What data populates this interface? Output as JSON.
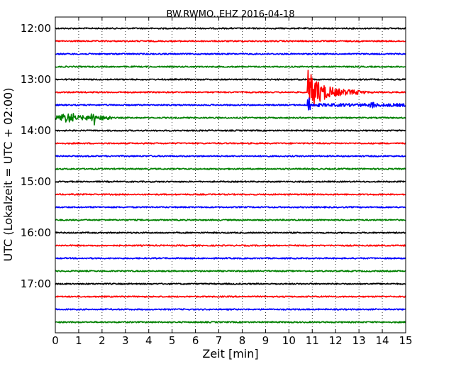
{
  "chart_data": {
    "type": "line",
    "title": "BW.RWMO..EHZ 2016-04-18",
    "xlabel": "Zeit  [min]",
    "ylabel": "UTC (Lokalzeit = UTC + 02:00)",
    "xlim": [
      0,
      15
    ],
    "x_ticks": [
      "0",
      "1",
      "2",
      "3",
      "4",
      "5",
      "6",
      "7",
      "8",
      "9",
      "10",
      "11",
      "12",
      "13",
      "14",
      "15"
    ],
    "y_ticks": [
      "12:00",
      "13:00",
      "14:00",
      "15:00",
      "16:00",
      "17:00"
    ],
    "grid": "vertical dotted at each minute",
    "colors": [
      "#000000",
      "#ff0000",
      "#0000ff",
      "#008000"
    ],
    "trace_interval_min": 15,
    "traces_start": "12:00",
    "trace_count": 24,
    "events": [
      {
        "trace_start": "13:15",
        "onset_min": 10.8,
        "peak_amplitude": "large",
        "coda_end_min": 13.3
      },
      {
        "trace_start": "13:30",
        "onset_min": 10.8,
        "peak_amplitude": "medium",
        "extra_burst_min": 13.6
      },
      {
        "trace_start": "13:45",
        "onset_min": 0.0,
        "peak_amplitude": "small",
        "burst_min": [
          0.5,
          1.6
        ]
      }
    ]
  }
}
